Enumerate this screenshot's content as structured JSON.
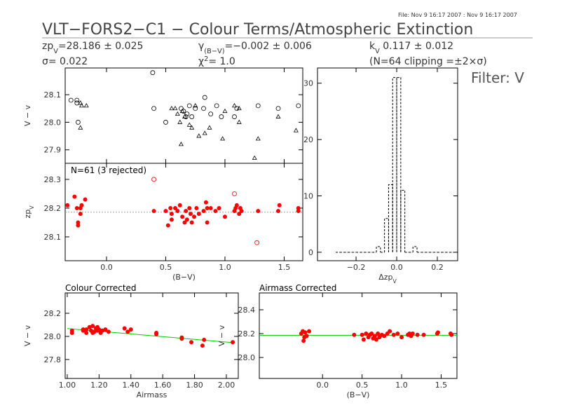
{
  "header": {
    "file": "File: Nov  9 16:17 2007 : Nov  9 16:17 2007",
    "title": "VLT−FORS2−C1 − Colour Terms/Atmospheric Extinction",
    "stats": [
      {
        "main": "zp",
        "sub": "V",
        "rest": "=28.186 ± 0.025"
      },
      {
        "main": "σ",
        "rest": "= 0.022"
      },
      {
        "main": "γ",
        "sub": "(B−V)",
        "rest": "=−0.002 ± 0.006"
      },
      {
        "main": "χ",
        "sup": "2",
        "rest": "=   1.0"
      },
      {
        "main": "k",
        "sub": "V",
        "rest": "  0.117 ± 0.012"
      },
      {
        "main": "(N=64 clipping =±2×σ)"
      }
    ],
    "filter": "Filter: V"
  },
  "chart_data": [
    {
      "type": "scatter",
      "ylabel": "V − v",
      "xlim": [
        -0.349,
        1.657
      ],
      "ylim": [
        27.851,
        28.197
      ],
      "xticks": [
        0,
        0.5,
        1,
        1.5
      ],
      "xtick_labels": false,
      "yticks": [
        27.9,
        {
          "value": 28,
          "label": "28.0"
        },
        28.1
      ],
      "series": [
        {
          "marker": "circle",
          "filled": false,
          "color": "#000000",
          "x": [
            -0.3,
            -0.25,
            -0.25,
            -0.24,
            0.39,
            0.4,
            0.63,
            0.65,
            0.67,
            0.7,
            0.72,
            0.75,
            0.82,
            0.83,
            0.88,
            0.93,
            0.97,
            1.08,
            1.1,
            1.28,
            1.45,
            1.62,
            0.5,
            0.68
          ],
          "values": [
            28.08,
            28.07,
            28.08,
            28.0,
            28.18,
            28.05,
            28.05,
            28.04,
            28.02,
            28.06,
            28.02,
            28.05,
            28.05,
            28.09,
            28.03,
            28.06,
            28.02,
            28.02,
            28.05,
            28.06,
            28.05,
            28.06,
            28.0,
            28.03
          ]
        },
        {
          "marker": "triangle",
          "filled": false,
          "color": "#000000",
          "x": [
            -0.22,
            -0.21,
            -0.22,
            -0.17,
            0.55,
            0.58,
            0.6,
            0.62,
            0.64,
            0.66,
            0.7,
            0.72,
            0.75,
            0.78,
            0.83,
            0.87,
            0.98,
            1.0,
            1.08,
            1.12,
            1.12,
            1.25,
            1.28,
            1.45,
            1.6,
            0.63
          ],
          "values": [
            28.07,
            28.06,
            27.98,
            28.06,
            28.05,
            28.05,
            28.03,
            28.0,
            28.04,
            28.02,
            27.99,
            27.98,
            28.06,
            27.95,
            27.96,
            27.98,
            27.94,
            28.04,
            28.06,
            28.05,
            28.0,
            27.87,
            27.94,
            28.02,
            27.97,
            27.92
          ]
        }
      ]
    },
    {
      "type": "scatter",
      "annotation": "N=61 (3 rejected)",
      "xlabel": "(B−V)",
      "ylabel": "zp",
      "ylabel_sub": "V",
      "xlim": [
        -0.349,
        1.657
      ],
      "ylim": [
        28.017,
        28.356
      ],
      "xticks": [
        {
          "value": 0,
          "label": "0.0"
        },
        0.5,
        {
          "value": 1,
          "label": "1.0"
        },
        1.5
      ],
      "yticks": [
        28.1,
        28.2,
        28.3
      ],
      "hline": 28.186,
      "hline_color": "#999999",
      "series": [
        {
          "marker": "circle",
          "filled": true,
          "color": "#ff0000",
          "x": [
            -0.33,
            -0.25,
            -0.24,
            -0.24,
            -0.27,
            -0.22,
            -0.21,
            -0.22,
            -0.18,
            0.4,
            0.5,
            0.52,
            0.54,
            0.55,
            0.58,
            0.6,
            0.62,
            0.64,
            0.66,
            0.67,
            0.68,
            0.7,
            0.71,
            0.72,
            0.74,
            0.76,
            0.78,
            0.82,
            0.84,
            0.85,
            0.88,
            0.92,
            0.95,
            1.0,
            1.08,
            1.09,
            1.1,
            1.12,
            1.13,
            1.14,
            1.28,
            1.45,
            1.46,
            1.62,
            1.62,
            0.55,
            0.85
          ],
          "values": [
            28.21,
            28.2,
            28.14,
            28.15,
            28.24,
            28.2,
            28.21,
            28.18,
            28.23,
            28.19,
            28.19,
            28.14,
            28.2,
            28.18,
            28.2,
            28.19,
            28.21,
            28.17,
            28.15,
            28.19,
            28.16,
            28.2,
            28.18,
            28.15,
            28.17,
            28.2,
            28.18,
            28.19,
            28.22,
            28.2,
            28.2,
            28.19,
            28.2,
            28.17,
            28.19,
            28.2,
            28.21,
            28.18,
            28.2,
            28.19,
            28.19,
            28.19,
            28.21,
            28.2,
            28.19,
            28.16,
            28.15
          ]
        },
        {
          "marker": "circle",
          "filled": false,
          "color": "#ff0000",
          "x": [
            0.4,
            1.08,
            1.27
          ],
          "values": [
            28.3,
            28.25,
            28.08
          ]
        }
      ]
    },
    {
      "type": "histogram",
      "xlabel": "Δzp",
      "xlabel_sub": "V",
      "xlim": [
        -0.39,
        0.3
      ],
      "ylim": [
        -1.5,
        32.7
      ],
      "xticks": [
        {
          "value": -0.2,
          "label": "−0.2"
        },
        {
          "value": 0,
          "label": "0.0"
        },
        0.2
      ],
      "yticks": [
        0,
        10,
        20,
        30
      ],
      "color": "#000000",
      "bins": [
        -0.3,
        -0.28,
        -0.26,
        -0.24,
        -0.22,
        -0.2,
        -0.18,
        -0.16,
        -0.14,
        -0.12,
        -0.1,
        -0.08,
        -0.06,
        -0.04,
        -0.02,
        0,
        0.02,
        0.04,
        0.06,
        0.08,
        0.1,
        0.12,
        0.14,
        0.16,
        0.18,
        0.2,
        0.22,
        0.24,
        0.26,
        0.28,
        0.3
      ],
      "values": [
        0,
        0,
        0,
        0,
        0,
        0,
        0,
        0,
        0,
        0,
        1,
        0,
        6,
        12,
        31,
        31,
        11,
        0,
        0,
        1,
        0,
        0,
        0,
        0,
        0,
        0,
        0,
        0,
        0,
        0
      ]
    },
    {
      "type": "scatter",
      "title": "Colour Corrected",
      "xlabel": "Airmass",
      "ylabel": "V − v",
      "xlim": [
        0.987,
        2.075
      ],
      "ylim": [
        27.636,
        28.376
      ],
      "xticks": [
        {
          "value": 1,
          "label": "1.00"
        },
        {
          "value": 1.2,
          "label": "1.20"
        },
        {
          "value": 1.4,
          "label": "1.40"
        },
        {
          "value": 1.6,
          "label": "1.60"
        },
        {
          "value": 1.8,
          "label": "1.80"
        },
        {
          "value": 2,
          "label": "2.00"
        }
      ],
      "yticks": [
        27.8,
        {
          "value": 28,
          "label": "28.0"
        },
        28.2
      ],
      "fit": {
        "color": "#00cc00",
        "x": [
          1.0,
          2.05
        ],
        "values": [
          28.068,
          27.945
        ]
      },
      "series": [
        {
          "marker": "circle",
          "filled": true,
          "color": "#ff0000",
          "x": [
            1.03,
            1.03,
            1.1,
            1.1,
            1.12,
            1.14,
            1.15,
            1.16,
            1.17,
            1.18,
            1.19,
            1.2,
            1.21,
            1.22,
            1.24,
            1.26,
            1.36,
            1.38,
            1.4,
            1.56,
            1.56,
            1.72,
            1.72,
            1.78,
            1.85,
            1.86,
            2.04,
            1.12,
            1.16,
            1.19
          ],
          "values": [
            28.05,
            28.03,
            28.05,
            28.06,
            28.03,
            28.08,
            28.05,
            28.09,
            28.04,
            28.07,
            28.05,
            28.06,
            28.03,
            28.05,
            28.06,
            28.04,
            28.07,
            28.04,
            28.06,
            28.02,
            28.03,
            27.98,
            27.99,
            27.95,
            27.92,
            27.97,
            27.95,
            28.06,
            28.03,
            28.08
          ]
        }
      ]
    },
    {
      "type": "scatter",
      "title": "Airmass Corrected",
      "xlabel": "(B−V)",
      "ylabel": "V − v",
      "xlim": [
        -0.8,
        1.7
      ],
      "ylim": [
        27.824,
        28.541
      ],
      "xticks": [
        {
          "value": 0,
          "label": "0.0"
        },
        0.5,
        {
          "value": 1,
          "label": "1.0"
        },
        1.5
      ],
      "yticks": [
        {
          "value": 28,
          "label": "28.0"
        },
        28.2,
        28.4
      ],
      "hline": 28.186,
      "hline_color": "#00cc00",
      "series": [
        {
          "marker": "circle",
          "filled": true,
          "color": "#ff0000",
          "x": [
            -0.27,
            -0.25,
            -0.24,
            -0.23,
            -0.22,
            -0.2,
            -0.17,
            0.4,
            0.5,
            0.52,
            0.55,
            0.58,
            0.6,
            0.62,
            0.64,
            0.66,
            0.68,
            0.7,
            0.72,
            0.75,
            0.78,
            0.82,
            0.85,
            0.9,
            0.95,
            1.0,
            1.08,
            1.1,
            1.12,
            1.14,
            1.2,
            1.28,
            1.45,
            1.46,
            1.62,
            1.63
          ],
          "values": [
            28.2,
            28.22,
            28.14,
            28.17,
            28.21,
            28.18,
            28.22,
            28.19,
            28.19,
            28.15,
            28.2,
            28.17,
            28.19,
            28.2,
            28.16,
            28.18,
            28.15,
            28.2,
            28.17,
            28.19,
            28.18,
            28.2,
            28.22,
            28.19,
            28.2,
            28.17,
            28.19,
            28.2,
            28.18,
            28.2,
            28.19,
            28.19,
            28.2,
            28.21,
            28.2,
            28.19
          ]
        }
      ]
    }
  ]
}
